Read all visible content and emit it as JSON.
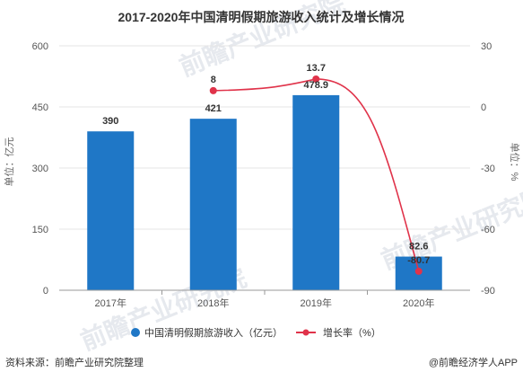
{
  "page": {
    "source": "资料来源：前瞻产业研究院整理",
    "credit": "@前瞻经济学人APP",
    "watermark": "前瞻产业研究院"
  },
  "chart_data": {
    "type": "bar",
    "title": "2017-2020年中国清明假期旅游收入统计及增长情况",
    "categories": [
      "2017年",
      "2018年",
      "2019年",
      "2020年"
    ],
    "ylabel": "单位：亿元",
    "ylabel_right": "单位：%",
    "ylim": [
      0,
      600
    ],
    "yticks": [
      0,
      150,
      300,
      450,
      600
    ],
    "ylim_right": [
      -90,
      30
    ],
    "yticks_right": [
      -90,
      -60,
      -30,
      0,
      30
    ],
    "grid": true,
    "legend_position": "bottom",
    "series": [
      {
        "name": "中国清明假期旅游收入（亿元）",
        "type": "bar",
        "axis": "left",
        "color": "#1f77c6",
        "values": [
          390,
          421,
          478.9,
          82.6
        ]
      },
      {
        "name": "增长率（%）",
        "type": "line",
        "axis": "right",
        "color": "#e0334a",
        "values": [
          null,
          8,
          13.7,
          -80.7
        ]
      }
    ]
  }
}
